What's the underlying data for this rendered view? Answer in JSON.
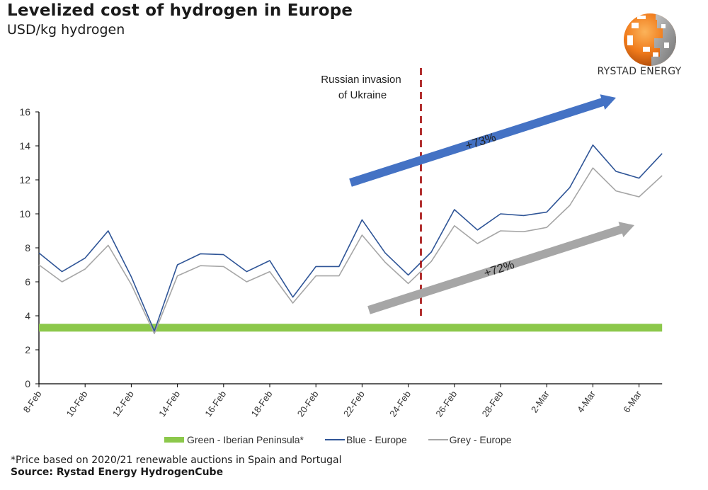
{
  "header": {
    "title": "Levelized cost of hydrogen in Europe",
    "subtitle": "USD/kg hydrogen"
  },
  "logo": {
    "name": "RYSTAD ENERGY"
  },
  "annotations": {
    "event_label_line1": "Russian invasion",
    "event_label_line2": "of Ukraine",
    "event_date": "24-Feb/25-Feb (between)",
    "blue_arrow_label": "+73%",
    "grey_arrow_label": "+72%"
  },
  "footer": {
    "footnote": "*Price based on 2020/21 renewable auctions in Spain and Portugal",
    "source": "Source: Rystad Energy HydrogenCube"
  },
  "colors": {
    "blue": "#2f5597",
    "grey": "#a6a6a6",
    "green": "#8cc84b",
    "blue_arrow": "#4472c4",
    "grey_arrow": "#a6a6a6",
    "event_line": "#a50e0e"
  },
  "chart_data": {
    "type": "line",
    "title": "Levelized cost of hydrogen in Europe",
    "subtitle": "USD/kg hydrogen",
    "xlabel": "",
    "ylabel": "USD/kg hydrogen",
    "ylim": [
      0,
      16
    ],
    "yticks": [
      "0",
      "2",
      "4",
      "6",
      "8",
      "10",
      "12",
      "14",
      "16"
    ],
    "x": [
      "8-Feb",
      "9-Feb",
      "10-Feb",
      "11-Feb",
      "12-Feb",
      "13-Feb",
      "14-Feb",
      "15-Feb",
      "16-Feb",
      "17-Feb",
      "18-Feb",
      "19-Feb",
      "20-Feb",
      "21-Feb",
      "22-Feb",
      "23-Feb",
      "24-Feb",
      "25-Feb",
      "26-Feb",
      "27-Feb",
      "28-Feb",
      "1-Mar",
      "2-Mar",
      "3-Mar",
      "4-Mar",
      "5-Mar",
      "6-Mar",
      "7-Mar"
    ],
    "xtick_labels": [
      "8-Feb",
      "10-Feb",
      "12-Feb",
      "14-Feb",
      "16-Feb",
      "18-Feb",
      "20-Feb",
      "22-Feb",
      "24-Feb",
      "26-Feb",
      "28-Feb",
      "2-Mar",
      "4-Mar",
      "6-Mar"
    ],
    "grid": false,
    "legend_position": "bottom",
    "series": [
      {
        "name": "Green - Iberian Peninsula*",
        "style": "thick-band",
        "values": [
          3.3,
          3.3,
          3.3,
          3.3,
          3.3,
          3.3,
          3.3,
          3.3,
          3.3,
          3.3,
          3.3,
          3.3,
          3.3,
          3.3,
          3.3,
          3.3,
          3.3,
          3.3,
          3.3,
          3.3,
          3.3,
          3.3,
          3.3,
          3.3,
          3.3,
          3.3,
          3.3,
          3.3
        ]
      },
      {
        "name": "Blue - Europe",
        "style": "line",
        "values": [
          7.7,
          6.6,
          7.4,
          9.0,
          6.3,
          3.1,
          7.0,
          7.65,
          7.6,
          6.6,
          7.25,
          5.1,
          6.9,
          6.9,
          9.65,
          7.7,
          6.4,
          7.75,
          10.25,
          9.05,
          10.0,
          9.9,
          10.1,
          11.55,
          14.05,
          12.5,
          12.1,
          13.55
        ]
      },
      {
        "name": "Grey - Europe",
        "style": "line",
        "values": [
          7.0,
          6.0,
          6.75,
          8.15,
          5.85,
          2.95,
          6.35,
          6.95,
          6.9,
          6.0,
          6.6,
          4.75,
          6.35,
          6.35,
          8.75,
          7.15,
          5.9,
          7.2,
          9.3,
          8.25,
          9.0,
          8.95,
          9.2,
          10.5,
          12.7,
          11.35,
          11.0,
          12.25
        ]
      }
    ],
    "annotations": [
      {
        "text": "Russian invasion of Ukraine",
        "type": "vertical-dashed-line",
        "x": "between 24-Feb and 25-Feb"
      },
      {
        "text": "+73%",
        "type": "arrow",
        "series": "Blue - Europe"
      },
      {
        "text": "+72%",
        "type": "arrow",
        "series": "Grey - Europe"
      }
    ]
  }
}
